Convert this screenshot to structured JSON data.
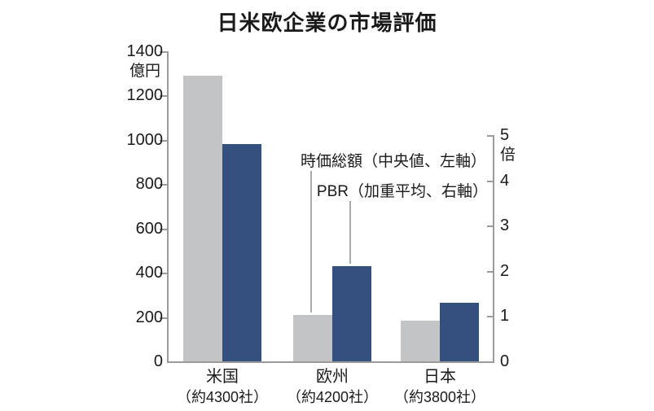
{
  "title": "日米欧企業の市場評価",
  "chart_data": {
    "type": "bar",
    "title": "日米欧企業の市場評価",
    "categories": [
      "米国",
      "欧州",
      "日本"
    ],
    "category_sublabels": [
      "（約4300社）",
      "（約4200社）",
      "（約3800社）"
    ],
    "category_ids": [
      "us",
      "europe",
      "japan"
    ],
    "series": [
      {
        "id": "market-cap",
        "name": "時価総額（中央値、左軸）",
        "axis": "left",
        "unit": "億円",
        "color": "#c3c4c6",
        "values": [
          1290,
          210,
          185
        ]
      },
      {
        "id": "pbr",
        "name": "PBR（加重平均、右軸）",
        "axis": "right",
        "unit": "倍",
        "color": "#33507e",
        "values": [
          4.8,
          2.1,
          1.3
        ]
      }
    ],
    "left_axis": {
      "unit": "億円",
      "min": 0,
      "max": 1400,
      "ticks": [
        0,
        200,
        400,
        600,
        800,
        1000,
        1200,
        1400
      ]
    },
    "right_axis": {
      "unit": "倍",
      "min": 0,
      "max": 5,
      "ticks": [
        0,
        1,
        2,
        3,
        4,
        5
      ]
    },
    "legend_position": "inside-upper-right, leader lines point to 欧州 bars",
    "grid": false,
    "colors": {
      "bar_gray": "#c3c4c6",
      "bar_blue": "#33507e",
      "axis": "#9b9b9b",
      "leader_line": "#ababab",
      "text": "#1a1a1a",
      "background": "#ffffff"
    }
  }
}
